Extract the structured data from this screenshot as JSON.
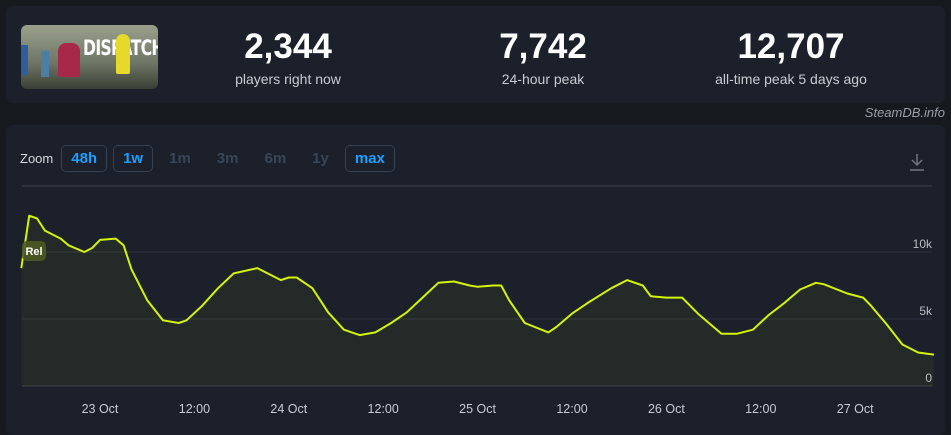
{
  "game": {
    "logo_text": "DISPATCH"
  },
  "stats": [
    {
      "value": "2,344",
      "label": "players right now"
    },
    {
      "value": "7,742",
      "label": "24-hour peak"
    },
    {
      "value": "12,707",
      "label": "all-time peak 5 days ago"
    }
  ],
  "credit": "SteamDB.info",
  "zoom": {
    "label": "Zoom",
    "options": [
      {
        "label": "48h",
        "active": true
      },
      {
        "label": "1w",
        "active": true
      },
      {
        "label": "1m",
        "active": false
      },
      {
        "label": "3m",
        "active": false
      },
      {
        "label": "6m",
        "active": false
      },
      {
        "label": "1y",
        "active": false
      },
      {
        "label": "max",
        "active": true
      }
    ]
  },
  "icons": {
    "download": "download-icon"
  },
  "colors": {
    "line": "#d4f500",
    "accent": "#1a9fff"
  },
  "chart_data": {
    "type": "line",
    "ylim": [
      0,
      14000
    ],
    "y_ticks": [
      {
        "value": 0,
        "label": "0"
      },
      {
        "value": 5000,
        "label": "5k"
      },
      {
        "value": 10000,
        "label": "10k"
      }
    ],
    "x_ticks": [
      "23 Oct 00:00",
      "23 Oct 12:00",
      "24 Oct 00:00",
      "24 Oct 12:00",
      "25 Oct 00:00",
      "25 Oct 12:00",
      "26 Oct 00:00",
      "26 Oct 12:00",
      "27 Oct 00:00"
    ],
    "x_tick_labels": [
      "23 Oct",
      "12:00",
      "24 Oct",
      "12:00",
      "25 Oct",
      "12:00",
      "26 Oct",
      "12:00",
      "27 Oct"
    ],
    "grid": true,
    "annotation": "Rel",
    "series": [
      {
        "points": [
          [
            "22 Oct 14:00",
            8800
          ],
          [
            "22 Oct 15:00",
            12707
          ],
          [
            "22 Oct 16:00",
            12500
          ],
          [
            "22 Oct 17:00",
            11600
          ],
          [
            "22 Oct 19:00",
            11000
          ],
          [
            "22 Oct 20:00",
            10500
          ],
          [
            "22 Oct 22:00",
            10000
          ],
          [
            "22 Oct 23:00",
            10300
          ],
          [
            "23 Oct 00:00",
            10900
          ],
          [
            "23 Oct 02:00",
            11000
          ],
          [
            "23 Oct 03:00",
            10500
          ],
          [
            "23 Oct 04:00",
            8700
          ],
          [
            "23 Oct 06:00",
            6400
          ],
          [
            "23 Oct 08:00",
            4900
          ],
          [
            "23 Oct 10:00",
            4700
          ],
          [
            "23 Oct 11:00",
            4900
          ],
          [
            "23 Oct 13:00",
            6000
          ],
          [
            "23 Oct 15:00",
            7300
          ],
          [
            "23 Oct 17:00",
            8400
          ],
          [
            "23 Oct 20:00",
            8800
          ],
          [
            "23 Oct 21:00",
            8500
          ],
          [
            "23 Oct 23:00",
            7900
          ],
          [
            "24 Oct 00:00",
            8100
          ],
          [
            "24 Oct 01:00",
            8100
          ],
          [
            "24 Oct 03:00",
            7300
          ],
          [
            "24 Oct 05:00",
            5500
          ],
          [
            "24 Oct 07:00",
            4200
          ],
          [
            "24 Oct 09:00",
            3800
          ],
          [
            "24 Oct 11:00",
            4000
          ],
          [
            "24 Oct 13:00",
            4700
          ],
          [
            "24 Oct 15:00",
            5500
          ],
          [
            "24 Oct 17:00",
            6600
          ],
          [
            "24 Oct 19:00",
            7700
          ],
          [
            "24 Oct 21:00",
            7800
          ],
          [
            "24 Oct 23:00",
            7500
          ],
          [
            "25 Oct 00:00",
            7400
          ],
          [
            "25 Oct 02:00",
            7500
          ],
          [
            "25 Oct 03:00",
            7500
          ],
          [
            "25 Oct 04:00",
            6400
          ],
          [
            "25 Oct 06:00",
            4700
          ],
          [
            "25 Oct 09:00",
            4000
          ],
          [
            "25 Oct 10:00",
            4400
          ],
          [
            "25 Oct 12:00",
            5400
          ],
          [
            "25 Oct 14:00",
            6200
          ],
          [
            "25 Oct 17:00",
            7300
          ],
          [
            "25 Oct 19:00",
            7900
          ],
          [
            "25 Oct 21:00",
            7500
          ],
          [
            "25 Oct 22:00",
            6700
          ],
          [
            "26 Oct 00:00",
            6600
          ],
          [
            "26 Oct 02:00",
            6600
          ],
          [
            "26 Oct 04:00",
            5400
          ],
          [
            "26 Oct 07:00",
            3900
          ],
          [
            "26 Oct 09:00",
            3900
          ],
          [
            "26 Oct 11:00",
            4200
          ],
          [
            "26 Oct 13:00",
            5300
          ],
          [
            "26 Oct 15:00",
            6200
          ],
          [
            "26 Oct 17:00",
            7200
          ],
          [
            "26 Oct 19:00",
            7700
          ],
          [
            "26 Oct 20:00",
            7600
          ],
          [
            "26 Oct 23:00",
            6900
          ],
          [
            "27 Oct 01:00",
            6600
          ],
          [
            "27 Oct 02:00",
            6000
          ],
          [
            "27 Oct 04:00",
            4600
          ],
          [
            "27 Oct 06:00",
            3100
          ],
          [
            "27 Oct 08:00",
            2500
          ],
          [
            "27 Oct 10:00",
            2344
          ]
        ]
      }
    ]
  }
}
